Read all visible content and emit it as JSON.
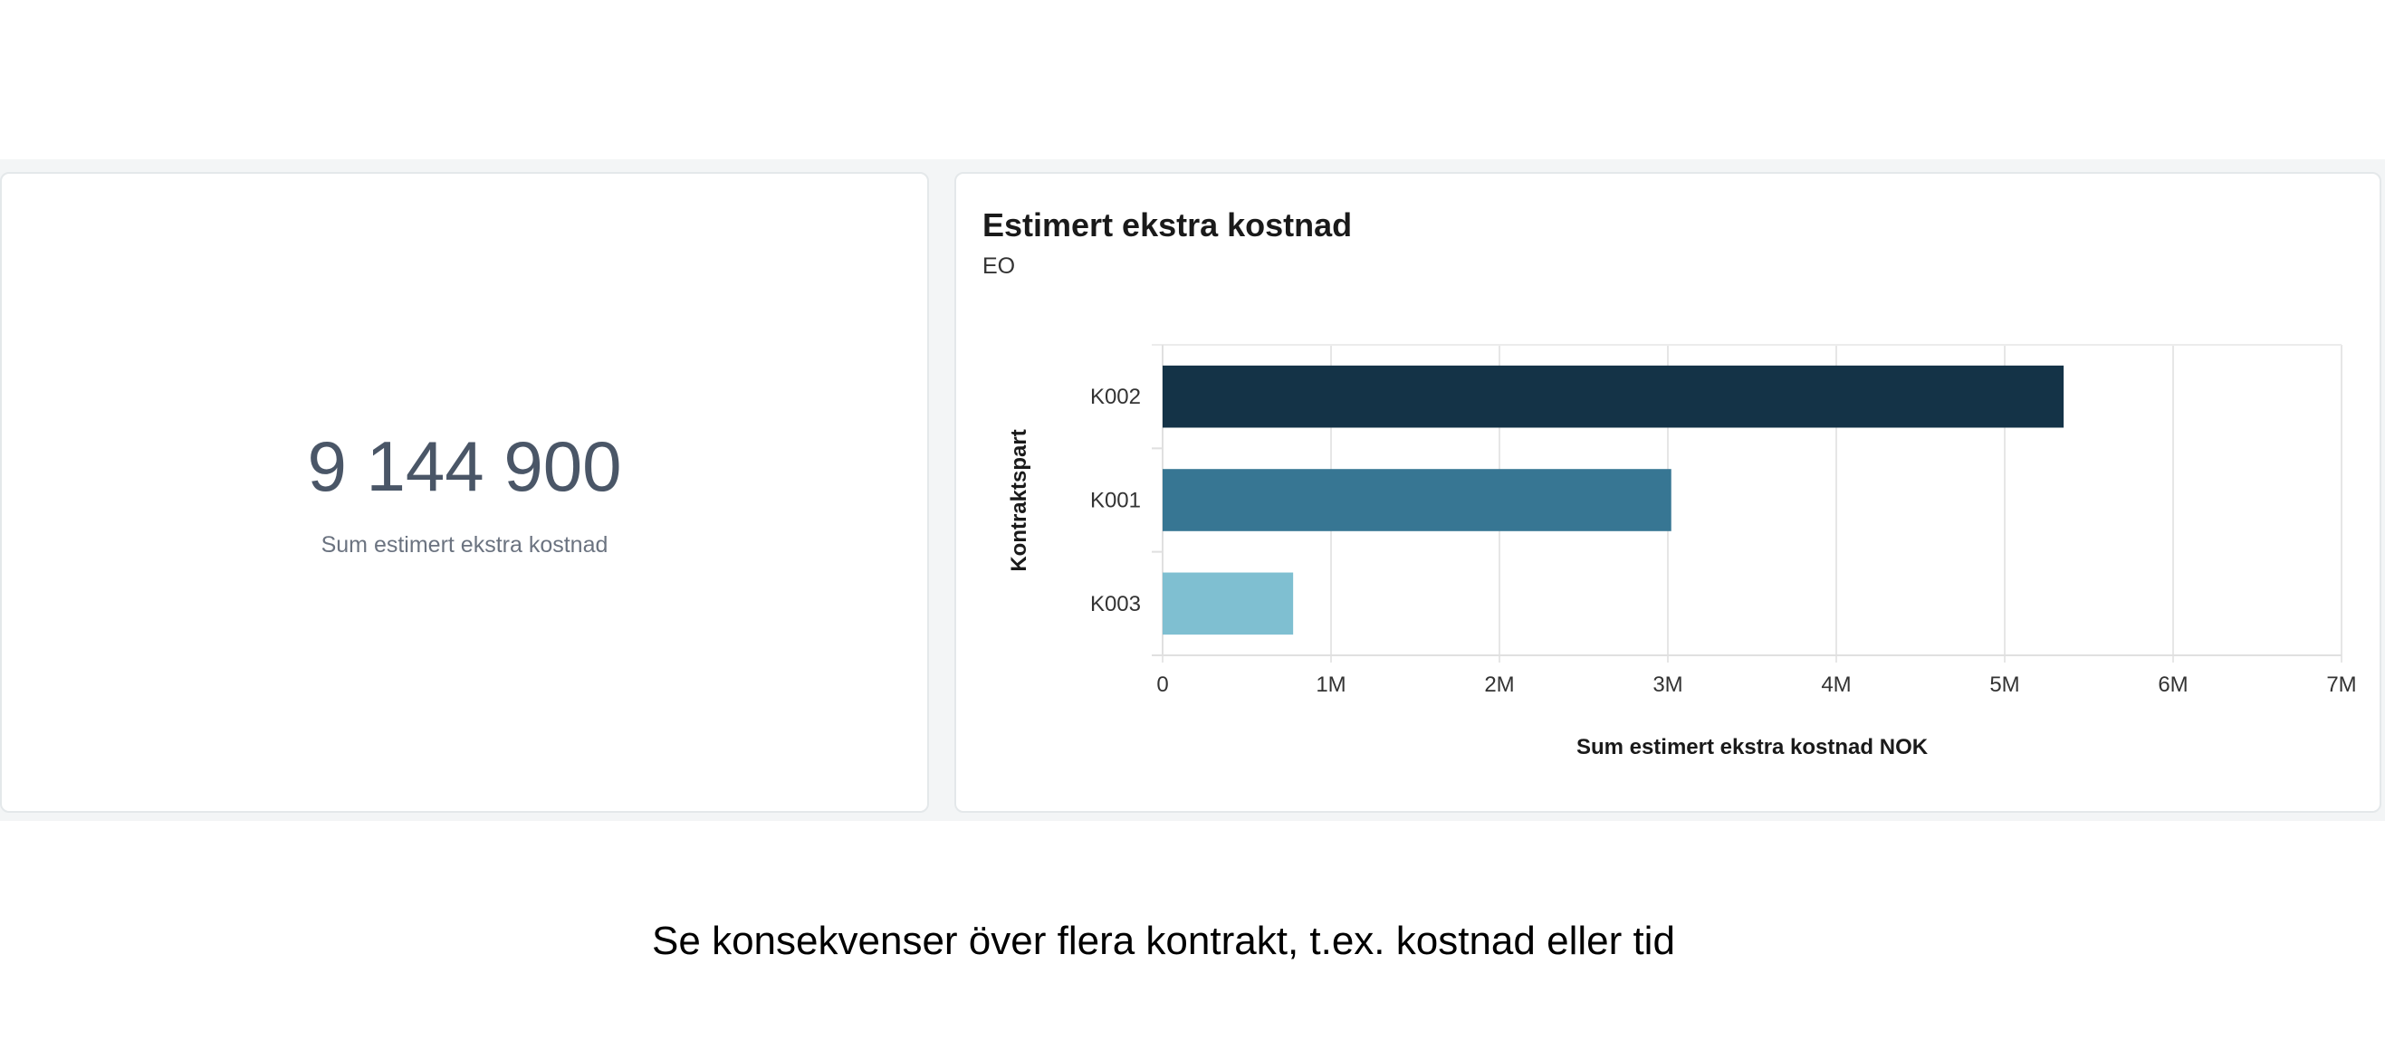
{
  "kpi": {
    "value": "9 144 900",
    "label": "Sum estimert ekstra kostnad"
  },
  "chart_data": {
    "type": "bar",
    "orientation": "horizontal",
    "title": "Estimert ekstra kostnad",
    "subtitle": "EO",
    "xlabel": "Sum estimert ekstra kostnad NOK",
    "ylabel": "Kontraktspart",
    "categories": [
      "K002",
      "K001",
      "K003"
    ],
    "values": [
      5350000,
      3020000,
      775000
    ],
    "colors": [
      "#143347",
      "#377693",
      "#7fbfd1"
    ],
    "xlim": [
      0,
      7000000
    ],
    "xticks": [
      0,
      1000000,
      2000000,
      3000000,
      4000000,
      5000000,
      6000000,
      7000000
    ],
    "xtick_labels": [
      "0",
      "1M",
      "2M",
      "3M",
      "4M",
      "5M",
      "6M",
      "7M"
    ],
    "grid": true
  },
  "caption": "Se konsekvenser över flera kontrakt, t.ex. kostnad eller tid"
}
